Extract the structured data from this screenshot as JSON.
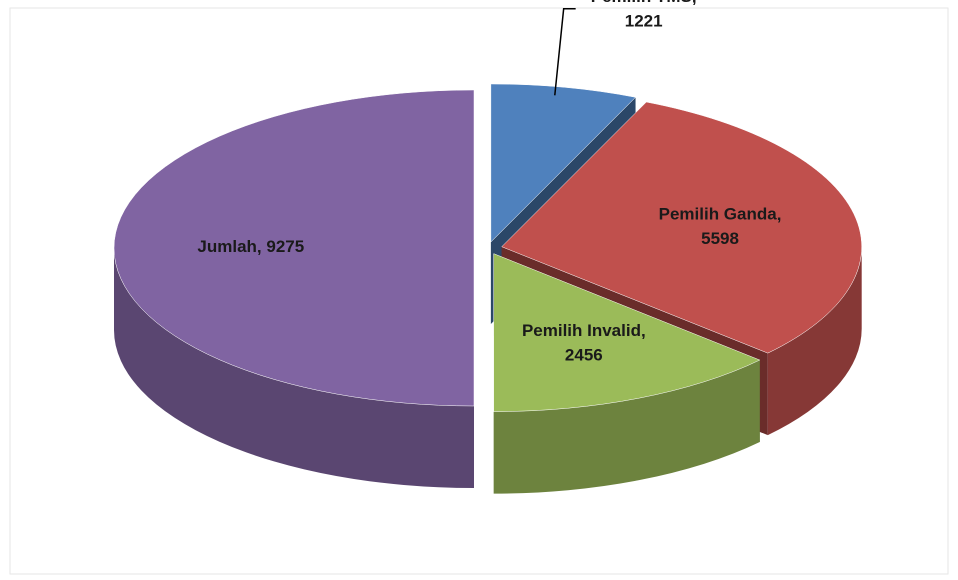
{
  "chart_data": {
    "type": "pie",
    "categories": [
      "Pemilih TMS",
      "Pemilih Ganda",
      "Pemilih Invalid",
      "Jumlah"
    ],
    "values": [
      1221,
      5598,
      2456,
      9275
    ],
    "colors": [
      "#4f81bd",
      "#c0504d",
      "#9bbb59",
      "#8064a2"
    ]
  }
}
